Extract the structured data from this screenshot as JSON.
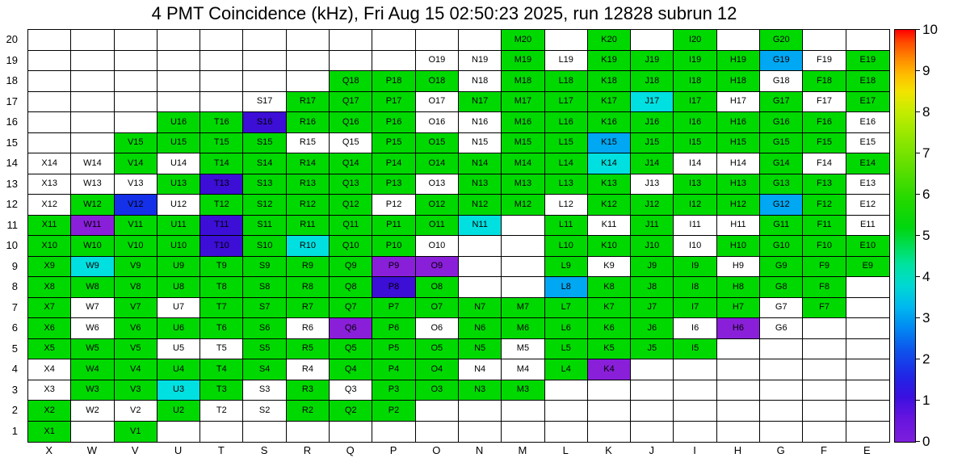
{
  "chart_data": {
    "type": "heatmap",
    "title": "4 PMT Coincidence (kHz), Fri Aug 15 02:50:23 2025, run 12828 subrun 12",
    "xlabel": "",
    "ylabel": "",
    "x_categories": [
      "X",
      "W",
      "V",
      "U",
      "T",
      "S",
      "R",
      "Q",
      "P",
      "O",
      "N",
      "M",
      "L",
      "K",
      "J",
      "I",
      "H",
      "G",
      "F",
      "E"
    ],
    "y_categories": [
      "20",
      "19",
      "18",
      "17",
      "16",
      "15",
      "14",
      "13",
      "12",
      "11",
      "10",
      "9",
      "8",
      "7",
      "6",
      "5",
      "4",
      "3",
      "2",
      "1"
    ],
    "colorbar": {
      "min": 0,
      "max": 10,
      "ticks": [
        "10",
        "9",
        "8",
        "7",
        "6",
        "5",
        "4",
        "3",
        "2",
        "1",
        "0"
      ]
    },
    "palette": {
      "g": "#00D900",
      "w": "#FFFFFF",
      "c": "#00E0E1",
      "lb": "#00A7F2",
      "b": "#1430E8",
      "bv": "#3C0ED6",
      "v": "#8A1FD9"
    },
    "palette_value_hint_kHz": {
      "g": 5.3,
      "c": 3.3,
      "lb": 2.7,
      "b": 1.8,
      "bv": 1.2,
      "v": 0.8,
      "w": null
    },
    "grid": [
      [
        "",
        "",
        "",
        "",
        "",
        "",
        "",
        "",
        "",
        "",
        "",
        "M20:g",
        "",
        "K20:g",
        "",
        "I20:g",
        "",
        "G20:g",
        "",
        ""
      ],
      [
        "",
        "",
        "",
        "",
        "",
        "",
        "",
        "",
        "",
        "O19:w",
        "N19:w",
        "M19:g",
        "L19:w",
        "K19:g",
        "J19:g",
        "I19:g",
        "H19:g",
        "G19:lb",
        "F19:w",
        "E19:g"
      ],
      [
        "",
        "",
        "",
        "",
        "",
        "",
        "",
        "Q18:g",
        "P18:g",
        "O18:g",
        "N18:w",
        "M18:g",
        "L18:g",
        "K18:g",
        "J18:g",
        "I18:g",
        "H18:g",
        "G18:w",
        "F18:g",
        "E18:g"
      ],
      [
        "",
        "",
        "",
        "",
        "",
        "S17:w",
        "R17:g",
        "Q17:g",
        "P17:g",
        "O17:w",
        "N17:g",
        "M17:g",
        "L17:g",
        "K17:g",
        "J17:c",
        "I17:g",
        "H17:w",
        "G17:g",
        "F17:w",
        "E17:g"
      ],
      [
        "",
        "",
        "",
        "U16:g",
        "T16:g",
        "S16:bv",
        "R16:g",
        "Q16:g",
        "P16:g",
        "O16:w",
        "N16:w",
        "M16:g",
        "L16:g",
        "K16:g",
        "J16:g",
        "I16:g",
        "H16:g",
        "G16:g",
        "F16:g",
        "E16:w"
      ],
      [
        "",
        "",
        "V15:g",
        "U15:g",
        "T15:g",
        "S15:g",
        "R15:w",
        "Q15:w",
        "P15:g",
        "O15:g",
        "N15:w",
        "M15:g",
        "L15:g",
        "K15:lb",
        "J15:g",
        "I15:g",
        "H15:g",
        "G15:g",
        "F15:g",
        "E15:w"
      ],
      [
        "X14:w",
        "W14:w",
        "V14:g",
        "U14:w",
        "T14:g",
        "S14:g",
        "R14:g",
        "Q14:g",
        "P14:g",
        "O14:g",
        "N14:g",
        "M14:g",
        "L14:g",
        "K14:c",
        "J14:g",
        "I14:w",
        "H14:w",
        "G14:g",
        "F14:w",
        "E14:g"
      ],
      [
        "X13:w",
        "W13:w",
        "V13:w",
        "U13:g",
        "T13:bv",
        "S13:g",
        "R13:g",
        "Q13:g",
        "P13:g",
        "O13:w",
        "N13:g",
        "M13:g",
        "L13:g",
        "K13:g",
        "J13:w",
        "I13:g",
        "H13:g",
        "G13:g",
        "F13:g",
        "E13:w"
      ],
      [
        "X12:w",
        "W12:g",
        "V12:b",
        "U12:w",
        "T12:g",
        "S12:g",
        "R12:g",
        "Q12:g",
        "P12:w",
        "O12:g",
        "N12:g",
        "M12:g",
        "L12:w",
        "K12:g",
        "J12:g",
        "I12:g",
        "H12:g",
        "G12:lb",
        "F12:g",
        "E12:w"
      ],
      [
        "X11:g",
        "W11:v",
        "V11:g",
        "U11:g",
        "T11:bv",
        "S11:g",
        "R11:g",
        "Q11:g",
        "P11:g",
        "O11:g",
        "N11:c",
        "",
        "L11:g",
        "K11:w",
        "J11:g",
        "I11:w",
        "H11:w",
        "G11:g",
        "F11:g",
        "E11:w"
      ],
      [
        "X10:g",
        "W10:g",
        "V10:g",
        "U10:g",
        "T10:bv",
        "S10:g",
        "R10:c",
        "Q10:g",
        "P10:g",
        "O10:w",
        "",
        "",
        "L10:g",
        "K10:g",
        "J10:g",
        "I10:w",
        "H10:g",
        "G10:g",
        "F10:g",
        "E10:g"
      ],
      [
        "X9:g",
        "W9:c",
        "V9:g",
        "U9:g",
        "T9:g",
        "S9:g",
        "R9:g",
        "Q9:g",
        "P9:v",
        "O9:v",
        "",
        "",
        "L9:g",
        "K9:w",
        "J9:g",
        "I9:g",
        "H9:w",
        "G9:g",
        "F9:g",
        "E9:g"
      ],
      [
        "X8:g",
        "W8:g",
        "V8:g",
        "U8:g",
        "T8:g",
        "S8:g",
        "R8:g",
        "Q8:g",
        "P8:bv",
        "O8:g",
        "",
        "",
        "L8:lb",
        "K8:g",
        "J8:g",
        "I8:g",
        "H8:g",
        "G8:g",
        "F8:g",
        ""
      ],
      [
        "X7:g",
        "W7:w",
        "V7:g",
        "U7:w",
        "T7:g",
        "S7:g",
        "R7:g",
        "Q7:g",
        "P7:g",
        "O7:g",
        "N7:g",
        "M7:g",
        "L7:g",
        "K7:g",
        "J7:g",
        "I7:g",
        "H7:g",
        "G7:w",
        "F7:g",
        ""
      ],
      [
        "X6:g",
        "W6:w",
        "V6:g",
        "U6:g",
        "T6:g",
        "S6:g",
        "R6:w",
        "Q6:v",
        "P6:g",
        "O6:w",
        "N6:g",
        "M6:g",
        "L6:g",
        "K6:g",
        "J6:g",
        "I6:w",
        "H6:v",
        "G6:w",
        "",
        ""
      ],
      [
        "X5:g",
        "W5:g",
        "V5:g",
        "U5:w",
        "T5:w",
        "S5:g",
        "R5:g",
        "Q5:g",
        "P5:g",
        "O5:g",
        "N5:g",
        "M5:w",
        "L5:g",
        "K5:g",
        "J5:g",
        "I5:g",
        "",
        "",
        "",
        ""
      ],
      [
        "X4:w",
        "W4:g",
        "V4:g",
        "U4:g",
        "T4:g",
        "S4:g",
        "R4:w",
        "Q4:g",
        "P4:g",
        "O4:g",
        "N4:w",
        "M4:w",
        "L4:g",
        "K4:v",
        "",
        "",
        "",
        "",
        "",
        ""
      ],
      [
        "X3:w",
        "W3:g",
        "V3:g",
        "U3:c",
        "T3:g",
        "S3:w",
        "R3:g",
        "Q3:w",
        "P3:g",
        "O3:g",
        "N3:g",
        "M3:g",
        "",
        "",
        "",
        "",
        "",
        "",
        "",
        ""
      ],
      [
        "X2:g",
        "W2:w",
        "V2:w",
        "U2:g",
        "T2:w",
        "S2:w",
        "R2:g",
        "Q2:g",
        "P2:g",
        "",
        "",
        "",
        "",
        "",
        "",
        "",
        "",
        "",
        "",
        ""
      ],
      [
        "X1:g",
        "",
        "V1:g",
        "",
        "",
        "",
        "",
        "",
        "",
        "",
        "",
        "",
        "",
        "",
        "",
        "",
        "",
        "",
        "",
        ""
      ]
    ]
  }
}
